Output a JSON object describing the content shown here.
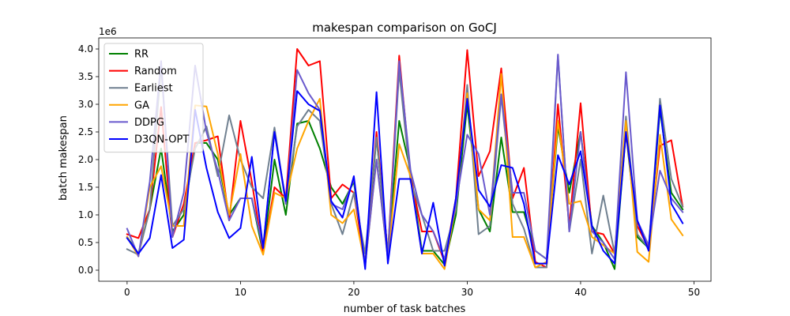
{
  "chart_data": {
    "type": "line",
    "title": "makespan comparison on GoCJ",
    "xlabel": "number of task batches",
    "ylabel": "batch makespan",
    "y_offset_label": "1e6",
    "xlim": [
      -2.5,
      51.5
    ],
    "ylim": [
      -0.2,
      4.2
    ],
    "x_ticks": [
      0,
      10,
      20,
      30,
      40,
      50
    ],
    "y_ticks": [
      0.0,
      0.5,
      1.0,
      1.5,
      2.0,
      2.5,
      3.0,
      3.5,
      4.0
    ],
    "y_tick_labels": [
      "0.0",
      "0.5",
      "1.0",
      "1.5",
      "2.0",
      "2.5",
      "3.0",
      "3.5",
      "4.0"
    ],
    "grid": false,
    "legend_position": "top-left",
    "x": [
      0,
      1,
      2,
      3,
      4,
      5,
      6,
      7,
      8,
      9,
      10,
      11,
      12,
      13,
      14,
      15,
      16,
      17,
      18,
      19,
      20,
      21,
      22,
      23,
      24,
      25,
      26,
      27,
      28,
      29,
      30,
      31,
      32,
      33,
      34,
      35,
      36,
      37,
      38,
      39,
      40,
      41,
      42,
      43,
      44,
      45,
      46,
      47,
      48,
      49
    ],
    "series": [
      {
        "name": "RR",
        "color": "#008000",
        "values": [
          0.6,
          0.3,
          1.1,
          2.2,
          0.7,
          1.0,
          2.3,
          2.3,
          2.0,
          1.0,
          1.3,
          1.3,
          0.3,
          2.0,
          1.0,
          2.65,
          2.7,
          2.2,
          1.5,
          1.2,
          1.6,
          0.1,
          2.4,
          0.3,
          2.7,
          1.8,
          0.35,
          0.35,
          0.1,
          1.0,
          3.0,
          1.1,
          0.7,
          2.4,
          1.05,
          1.05,
          0.35,
          0.2,
          2.6,
          1.4,
          2.5,
          0.8,
          0.5,
          0.02,
          2.5,
          0.6,
          0.4,
          2.9,
          1.4,
          1.1
        ]
      },
      {
        "name": "Random",
        "color": "#ff0000",
        "values": [
          0.65,
          0.58,
          1.1,
          2.95,
          0.6,
          1.2,
          2.3,
          2.35,
          2.42,
          0.9,
          2.7,
          1.6,
          0.3,
          1.5,
          1.3,
          4.0,
          3.7,
          3.78,
          1.3,
          1.55,
          1.4,
          0.1,
          2.5,
          0.3,
          3.88,
          1.7,
          0.7,
          0.7,
          0.15,
          1.3,
          3.98,
          1.7,
          2.15,
          3.65,
          1.3,
          1.85,
          0.15,
          0.05,
          3.0,
          0.8,
          3.02,
          0.7,
          0.65,
          0.3,
          2.5,
          0.8,
          0.4,
          2.25,
          2.35,
          1.15
        ]
      },
      {
        "name": "Earliest",
        "color": "#708090",
        "values": [
          0.38,
          0.28,
          1.1,
          3.7,
          0.8,
          1.1,
          2.2,
          2.6,
          1.7,
          2.8,
          2.0,
          1.5,
          1.3,
          2.58,
          1.2,
          2.6,
          2.9,
          2.7,
          1.2,
          0.65,
          1.4,
          0.3,
          2.4,
          0.3,
          3.6,
          1.6,
          1.0,
          0.35,
          0.35,
          1.1,
          3.35,
          0.65,
          0.8,
          3.15,
          1.2,
          0.75,
          0.05,
          0.05,
          3.88,
          0.7,
          2.0,
          0.3,
          1.35,
          0.3,
          2.78,
          0.65,
          0.4,
          3.1,
          1.65,
          1.15
        ]
      },
      {
        "name": "GA",
        "color": "#ffa500",
        "values": [
          0.6,
          0.25,
          1.5,
          1.88,
          0.8,
          0.8,
          2.98,
          2.96,
          2.1,
          1.0,
          2.1,
          0.8,
          0.28,
          1.4,
          1.3,
          2.2,
          2.7,
          3.1,
          1.0,
          0.85,
          1.1,
          0.1,
          2.0,
          0.2,
          2.28,
          1.7,
          0.3,
          0.3,
          0.02,
          1.2,
          3.2,
          1.1,
          0.9,
          3.55,
          0.6,
          0.6,
          0.05,
          0.15,
          2.7,
          1.2,
          1.25,
          0.6,
          0.45,
          0.3,
          2.7,
          0.33,
          0.15,
          2.45,
          0.92,
          0.63
        ]
      },
      {
        "name": "DDPG",
        "color": "#6a5acd",
        "values": [
          0.75,
          0.25,
          1.6,
          3.78,
          0.6,
          1.4,
          3.7,
          2.5,
          1.8,
          0.9,
          1.3,
          1.3,
          0.4,
          2.5,
          1.2,
          3.62,
          3.2,
          2.9,
          1.2,
          1.1,
          1.65,
          0.1,
          2.0,
          0.2,
          3.78,
          1.8,
          1.0,
          0.7,
          0.2,
          1.2,
          2.45,
          2.1,
          1.0,
          3.18,
          1.4,
          1.4,
          0.35,
          0.2,
          3.9,
          0.7,
          2.5,
          0.7,
          0.5,
          0.2,
          3.58,
          0.9,
          0.45,
          1.8,
          1.3,
          1.05
        ]
      },
      {
        "name": "D3QN-OPT",
        "color": "#0000ff",
        "values": [
          0.58,
          0.3,
          0.58,
          1.72,
          0.4,
          0.55,
          2.9,
          1.85,
          1.05,
          0.58,
          0.76,
          2.05,
          0.4,
          2.5,
          1.25,
          3.24,
          3.0,
          2.88,
          1.25,
          0.95,
          1.7,
          0.02,
          3.22,
          0.12,
          1.65,
          1.65,
          0.3,
          1.22,
          0.08,
          1.3,
          3.1,
          1.45,
          1.15,
          1.9,
          1.85,
          1.2,
          0.12,
          0.12,
          2.08,
          1.55,
          2.15,
          0.8,
          0.35,
          0.12,
          2.5,
          0.9,
          0.35,
          2.98,
          1.2,
          0.85
        ]
      }
    ]
  }
}
